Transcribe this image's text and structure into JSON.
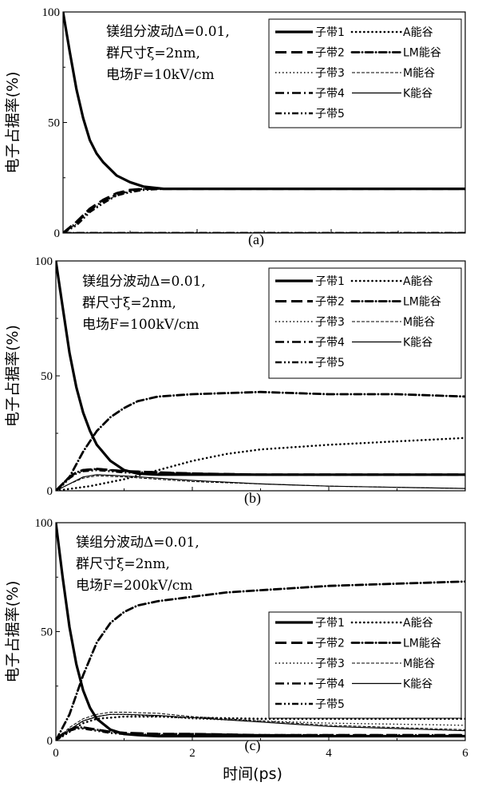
{
  "chart_data": [
    {
      "type": "line",
      "panel_label": "(a)",
      "annotation": [
        "镁组分波动Δ=0.01,",
        "群尺寸ξ=2nm,",
        "电场F=10kV/cm"
      ],
      "ylabel": "电子占据率(%)",
      "xlabel": "",
      "xlim": [
        0,
        6
      ],
      "ylim": [
        0,
        100
      ],
      "yticks": [
        "0",
        "50",
        "100"
      ],
      "xticks": [],
      "grid": false,
      "legend_position": "top-right",
      "series": [
        {
          "name": "子带1",
          "style": "solid-thick",
          "x": [
            0,
            0.1,
            0.2,
            0.3,
            0.4,
            0.5,
            0.6,
            0.8,
            1.0,
            1.2,
            1.5,
            2,
            3,
            4,
            5,
            6
          ],
          "y": [
            100,
            82,
            65,
            52,
            42,
            36,
            32,
            26,
            23,
            21,
            20,
            20,
            20,
            20,
            20,
            20
          ]
        },
        {
          "name": "子带2",
          "style": "dash-long",
          "x": [
            0,
            0.2,
            0.4,
            0.6,
            0.8,
            1.0,
            1.2,
            1.5,
            2,
            3,
            4,
            5,
            6
          ],
          "y": [
            0,
            5,
            11,
            15,
            18,
            19.5,
            20,
            20,
            20,
            20,
            20,
            20,
            20
          ]
        },
        {
          "name": "子带3",
          "style": "dotted",
          "x": [
            0,
            0.2,
            0.4,
            0.6,
            0.8,
            1.0,
            1.2,
            1.5,
            2,
            3,
            4,
            5,
            6
          ],
          "y": [
            0,
            4,
            10,
            14,
            17,
            19,
            20,
            20,
            20,
            20,
            20,
            20,
            20
          ]
        },
        {
          "name": "子带4",
          "style": "dash-dot",
          "x": [
            0,
            0.2,
            0.4,
            0.6,
            0.8,
            1.0,
            1.2,
            1.5,
            2,
            3,
            4,
            5,
            6
          ],
          "y": [
            0,
            4.5,
            10.5,
            14.5,
            17.5,
            19,
            20,
            20,
            20,
            20,
            20,
            20,
            20
          ]
        },
        {
          "name": "子带5",
          "style": "dash-dot-dot",
          "x": [
            0,
            0.2,
            0.4,
            0.6,
            0.8,
            1.0,
            1.2,
            1.5,
            2,
            3,
            4,
            5,
            6
          ],
          "y": [
            0,
            3.5,
            9.5,
            13.5,
            17,
            18.5,
            19.5,
            20,
            20,
            20,
            20,
            20,
            20
          ]
        },
        {
          "name": "A能谷",
          "style": "dotted-round",
          "x": [
            0,
            6
          ],
          "y": [
            0,
            0
          ]
        },
        {
          "name": "LM能谷",
          "style": "dash-dot-round",
          "x": [
            0,
            6
          ],
          "y": [
            0,
            0
          ]
        },
        {
          "name": "M能谷",
          "style": "dashed-thin",
          "x": [
            0,
            6
          ],
          "y": [
            0,
            0
          ]
        },
        {
          "name": "K能谷",
          "style": "solid-thin",
          "x": [
            0,
            6
          ],
          "y": [
            0,
            0
          ]
        }
      ]
    },
    {
      "type": "line",
      "panel_label": "(b)",
      "annotation": [
        "镁组分波动Δ=0.01,",
        "群尺寸ξ=2nm,",
        "电场F=100kV/cm"
      ],
      "ylabel": "电子占据率(%)",
      "xlabel": "",
      "xlim": [
        0,
        6
      ],
      "ylim": [
        0,
        100
      ],
      "yticks": [
        "0",
        "50",
        "100"
      ],
      "xticks": [],
      "grid": false,
      "legend_position": "top-right",
      "series": [
        {
          "name": "子带1",
          "style": "solid-thick",
          "x": [
            0,
            0.1,
            0.2,
            0.3,
            0.4,
            0.5,
            0.6,
            0.8,
            1.0,
            1.2,
            1.5,
            2,
            3,
            4,
            5,
            6
          ],
          "y": [
            100,
            80,
            60,
            45,
            34,
            26,
            20,
            13,
            9,
            7.5,
            7,
            7,
            7,
            7,
            7,
            7
          ]
        },
        {
          "name": "子带2",
          "style": "dash-long",
          "x": [
            0,
            0.1,
            0.2,
            0.3,
            0.4,
            0.6,
            0.8,
            1.0,
            1.5,
            2,
            3,
            4,
            5,
            6
          ],
          "y": [
            0,
            3,
            6,
            8,
            9,
            9.5,
            9,
            8.5,
            8,
            7.5,
            7,
            7,
            7,
            7
          ]
        },
        {
          "name": "子带3",
          "style": "dotted",
          "x": [
            0,
            0.1,
            0.2,
            0.3,
            0.4,
            0.6,
            0.8,
            1.0,
            1.5,
            2,
            3,
            4,
            5,
            6
          ],
          "y": [
            0,
            3,
            6,
            8,
            9,
            9.5,
            9,
            8.5,
            8,
            7.5,
            7,
            7,
            7,
            7
          ]
        },
        {
          "name": "子带4",
          "style": "dash-dot",
          "x": [
            0,
            0.1,
            0.2,
            0.3,
            0.4,
            0.6,
            0.8,
            1.0,
            1.5,
            2,
            3,
            4,
            5,
            6
          ],
          "y": [
            0,
            3,
            6,
            8,
            9,
            9.5,
            9,
            8.5,
            8,
            7.5,
            7,
            7,
            7,
            7
          ]
        },
        {
          "name": "子带5",
          "style": "dash-dot-dot",
          "x": [
            0,
            0.1,
            0.2,
            0.3,
            0.4,
            0.6,
            0.8,
            1.0,
            1.5,
            2,
            3,
            4,
            5,
            6
          ],
          "y": [
            0,
            2.5,
            5.5,
            7.5,
            8.5,
            9,
            8.5,
            8,
            7.5,
            7.2,
            7,
            7,
            7,
            7
          ]
        },
        {
          "name": "A能谷",
          "style": "dotted-round",
          "x": [
            0,
            0.5,
            1.0,
            1.5,
            2,
            2.5,
            3,
            4,
            5,
            6
          ],
          "y": [
            0,
            2,
            5,
            9,
            13,
            16,
            18,
            20,
            21.5,
            23
          ]
        },
        {
          "name": "LM能谷",
          "style": "dash-dot-round",
          "x": [
            0,
            0.2,
            0.4,
            0.6,
            0.8,
            1.0,
            1.2,
            1.5,
            2,
            3,
            4,
            5,
            6
          ],
          "y": [
            0,
            6,
            17,
            26,
            32,
            36,
            39,
            41,
            42,
            43,
            42,
            42,
            41
          ]
        },
        {
          "name": "M能谷",
          "style": "dashed-thin",
          "x": [
            0,
            0.2,
            0.4,
            0.6,
            1.0,
            1.5,
            2,
            3,
            4,
            5,
            6
          ],
          "y": [
            0,
            3,
            5.5,
            6.5,
            6,
            5,
            4,
            3,
            2,
            1.5,
            1
          ]
        },
        {
          "name": "K能谷",
          "style": "solid-thin",
          "x": [
            0,
            0.2,
            0.4,
            0.6,
            1.0,
            1.5,
            2,
            3,
            4,
            5,
            6
          ],
          "y": [
            0,
            3,
            6,
            7,
            6.5,
            5.5,
            4.5,
            3,
            2,
            1.5,
            1
          ]
        }
      ]
    },
    {
      "type": "line",
      "panel_label": "(c)",
      "annotation": [
        "镁组分波动Δ=0.01,",
        "群尺寸ξ=2nm,",
        "电场F=200kV/cm"
      ],
      "ylabel": "电子占据率(%)",
      "xlabel": "时间(ps)",
      "xlim": [
        0,
        6
      ],
      "ylim": [
        0,
        100
      ],
      "yticks": [
        "0",
        "50",
        "100"
      ],
      "xticks": [
        "0",
        "2",
        "4",
        "6"
      ],
      "grid": false,
      "legend_position": "bottom-right",
      "series": [
        {
          "name": "子带1",
          "style": "solid-thick",
          "x": [
            0,
            0.1,
            0.2,
            0.3,
            0.4,
            0.5,
            0.6,
            0.8,
            1.0,
            1.2,
            1.5,
            2,
            3,
            4,
            5,
            6
          ],
          "y": [
            100,
            75,
            52,
            35,
            23,
            15,
            10,
            5,
            3,
            2.5,
            2,
            2,
            2,
            2,
            2,
            2
          ]
        },
        {
          "name": "子带2",
          "style": "dash-long",
          "x": [
            0,
            0.1,
            0.2,
            0.3,
            0.4,
            0.6,
            0.8,
            1.0,
            1.5,
            2,
            3,
            4,
            5,
            6
          ],
          "y": [
            0,
            3,
            5,
            6,
            6,
            5,
            4,
            3.5,
            3,
            3,
            2.5,
            2.5,
            2.5,
            2.5
          ]
        },
        {
          "name": "子带3",
          "style": "dotted",
          "x": [
            0,
            0.2,
            0.4,
            0.6,
            0.8,
            1.0,
            1.5,
            2,
            3,
            4,
            5,
            6
          ],
          "y": [
            0,
            5,
            9,
            11,
            12,
            12,
            11,
            10,
            9,
            8,
            7.5,
            7
          ]
        },
        {
          "name": "子带4",
          "style": "dash-dot",
          "x": [
            0,
            0.1,
            0.2,
            0.3,
            0.4,
            0.6,
            0.8,
            1.0,
            1.5,
            2,
            3,
            4,
            5,
            6
          ],
          "y": [
            0,
            3,
            5,
            6,
            6,
            5,
            4,
            3.5,
            3,
            3,
            2.5,
            2.5,
            2.5,
            2.5
          ]
        },
        {
          "name": "子带5",
          "style": "dash-dot-dot",
          "x": [
            0,
            0.1,
            0.2,
            0.3,
            0.4,
            0.6,
            0.8,
            1.0,
            1.5,
            2,
            3,
            4,
            5,
            6
          ],
          "y": [
            0,
            2.5,
            4.5,
            5.5,
            5.5,
            4.5,
            3.5,
            3,
            2.5,
            2.5,
            2,
            2,
            2,
            2
          ]
        },
        {
          "name": "A能谷",
          "style": "dotted-round",
          "x": [
            0,
            0.2,
            0.4,
            0.6,
            1.0,
            1.5,
            2,
            3,
            4,
            5,
            6
          ],
          "y": [
            0,
            4,
            8,
            10,
            11,
            11,
            10.5,
            10,
            10,
            10,
            10
          ]
        },
        {
          "name": "LM能谷",
          "style": "dash-dot-round",
          "x": [
            0,
            0.2,
            0.4,
            0.6,
            0.8,
            1.0,
            1.2,
            1.5,
            2,
            2.5,
            3,
            4,
            5,
            6
          ],
          "y": [
            0,
            12,
            30,
            45,
            54,
            59,
            62,
            64,
            66,
            68,
            69,
            71,
            72,
            73
          ]
        },
        {
          "name": "M能谷",
          "style": "dashed-thin",
          "x": [
            0,
            0.2,
            0.4,
            0.6,
            0.8,
            1.0,
            1.5,
            2,
            3,
            4,
            5,
            6
          ],
          "y": [
            0,
            6,
            10,
            12,
            13,
            13,
            12.5,
            11,
            9,
            7,
            6,
            5
          ]
        },
        {
          "name": "K能谷",
          "style": "solid-thin",
          "x": [
            0,
            0.2,
            0.4,
            0.6,
            0.8,
            1.0,
            1.5,
            2,
            3,
            4,
            5,
            6
          ],
          "y": [
            0,
            5,
            9,
            11,
            12,
            12,
            11.5,
            10.5,
            8.5,
            6.5,
            5.5,
            4.5
          ]
        }
      ]
    }
  ]
}
